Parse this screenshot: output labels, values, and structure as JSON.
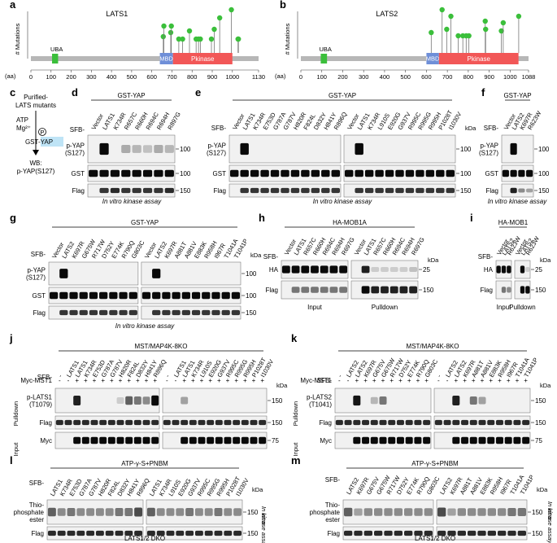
{
  "panels": {
    "a": {
      "letter": "a",
      "title": "LATS1",
      "ylabel": "# Mutations",
      "xlabel": "(aa)",
      "ticks": [
        "0",
        "100",
        "200",
        "300",
        "400",
        "500",
        "600",
        "700",
        "800",
        "900",
        "1000",
        "1130"
      ],
      "domains": [
        "UBA",
        "MBD",
        "Pkinase"
      ]
    },
    "b": {
      "letter": "b",
      "title": "LATS2",
      "ylabel": "# Mutations",
      "xlabel": "(aa)",
      "ticks": [
        "0",
        "100",
        "200",
        "300",
        "400",
        "500",
        "600",
        "700",
        "800",
        "900",
        "1000",
        "1088"
      ],
      "domains": [
        "UBA",
        "MBD",
        "Pkinase"
      ]
    },
    "c": {
      "letter": "c",
      "line1": "Purified-",
      "line2": "LATS mutants",
      "atp": "ATP",
      "mg": "Mg²⁺",
      "p": "P",
      "substrate": "GST-YAP",
      "wb1": "WB:",
      "wb2": "p-YAP(S127)"
    },
    "d": {
      "letter": "d",
      "header": "GST-YAP",
      "sfb": "SFB-",
      "lanes": [
        "Vector",
        "LATS1",
        "K734R",
        "R657C",
        "R660H",
        "R694C",
        "R694H",
        "R897G"
      ],
      "rows": [
        "p-YAP\n(S127)",
        "GST",
        "Flag"
      ],
      "markers": [
        "100",
        "100",
        "150"
      ],
      "footer": "In vitro kinase assay"
    },
    "e": {
      "letter": "e",
      "header": "GST-YAP",
      "sfb": "SFB-",
      "kda": "kDa",
      "lanes": [
        "Vector",
        "LATS1",
        "K734R",
        "E753D",
        "G787A",
        "G787V",
        "H820R",
        "F824L",
        "D832Y",
        "H841Y",
        "R896Q",
        "Vector",
        "LATS1",
        "K734R",
        "L910S",
        "E920G",
        "G937V",
        "R995C",
        "R995G",
        "R995H",
        "P1028T",
        "I1030V"
      ],
      "rows": [
        "p-YAP\n(S127)",
        "GST",
        "Flag"
      ],
      "markers": [
        "100",
        "100",
        "150"
      ],
      "footer": "In vitro kinase assay"
    },
    "f": {
      "letter": "f",
      "header": "GST-YAP",
      "sfb": "SFB-",
      "lanes": [
        "Vector",
        "LATS2",
        "K697R",
        "R623W"
      ],
      "rows": [
        "p-YAP\n(S127)",
        "GST",
        "Flag"
      ],
      "markers": [
        "100",
        "100",
        "150"
      ],
      "footer": "In vitro kinase assay"
    },
    "g": {
      "letter": "g",
      "header": "GST-YAP",
      "sfb": "SFB-",
      "kda": "kDa",
      "lanes": [
        "Vector",
        "LATS2",
        "K697R",
        "G675W",
        "R717W",
        "D752Y",
        "E774K",
        "R790Q",
        "G803C",
        "Vector",
        "LATS2",
        "K697R",
        "A881T",
        "A881V",
        "E883K",
        "R958H",
        "I967R",
        "T1041A",
        "T1041P"
      ],
      "rows": [
        "p-YAP\n(S127)",
        "GST",
        "Flag"
      ],
      "markers": [
        "100",
        "100",
        "150"
      ],
      "footer": "In vitro kinase assay"
    },
    "h": {
      "letter": "h",
      "header": "HA-MOB1A",
      "sfb": "SFB-",
      "kda": "kDa",
      "lanes": [
        "Vector",
        "LATS1",
        "R657C",
        "R660H",
        "R694C",
        "R694H",
        "R697G",
        "Vector",
        "LATS1",
        "R657C",
        "R660H",
        "R694C",
        "R694H",
        "R697G"
      ],
      "rows": [
        "HA",
        "Flag"
      ],
      "markers": [
        "25",
        "150"
      ],
      "groups": [
        "Input",
        "Pulldown"
      ]
    },
    "i": {
      "letter": "i",
      "header": "HA-MOB1",
      "sfb": "SFB-",
      "kda": "kDa",
      "lanes": [
        "Vector",
        "LATS2",
        "R623W",
        "Vector",
        "LATS2",
        "R623W"
      ],
      "rows": [
        "HA",
        "Flag"
      ],
      "markers": [
        "25",
        "150"
      ],
      "groups": [
        "Input",
        "Pulldown"
      ]
    },
    "j": {
      "letter": "j",
      "header": "MST/MAP4K-8KO",
      "sfb": "SFB-",
      "myc": "Myc-MST1",
      "kda": "kDa",
      "lanes": [
        "-",
        "LATS1",
        "LATS1",
        "K734R",
        "E753D",
        "G787A",
        "G787V",
        "H820R",
        "F824L",
        "D832Y",
        "H841Y",
        "R896Q",
        "-",
        "LATS1",
        "LATS1",
        "K734R",
        "L910S",
        "E920G",
        "G937V",
        "R995C",
        "R995G",
        "R995H",
        "P1028T",
        "I1030V"
      ],
      "mycsign": [
        "-",
        "-",
        "+",
        "+",
        "+",
        "+",
        "+",
        "+",
        "+",
        "+",
        "+",
        "+",
        "-",
        "-",
        "+",
        "+",
        "+",
        "+",
        "+",
        "+",
        "+",
        "+",
        "+",
        "+"
      ],
      "rows": [
        "p-LATS1\n(T1079)",
        "Flag",
        "Myc"
      ],
      "markers": [
        "150",
        "150",
        "75"
      ],
      "side": [
        "Pulldown",
        "Input"
      ]
    },
    "k": {
      "letter": "k",
      "header": "MST/MAP4K-8KO",
      "sfb": "SFB-",
      "myc": "Myc-MST1",
      "kda": "kDa",
      "lanes": [
        "-",
        "LATS2",
        "LATS2",
        "K697R",
        "G675V",
        "G675W",
        "R717W",
        "D752Y",
        "E774K",
        "R790Q",
        "G803C",
        "-",
        "LATS2",
        "LATS2",
        "K697R",
        "A881T",
        "A881V",
        "E883K",
        "R958H",
        "I967R",
        "T1041A",
        "T1041P"
      ],
      "mycsign": [
        "-",
        "-",
        "+",
        "+",
        "+",
        "+",
        "+",
        "+",
        "+",
        "+",
        "+",
        "-",
        "-",
        "+",
        "+",
        "+",
        "+",
        "+",
        "+",
        "+",
        "+",
        "+"
      ],
      "rows": [
        "p-LATS2\n(T1041)",
        "Flag",
        "Myc"
      ],
      "markers": [
        "150",
        "150",
        "75"
      ],
      "side": [
        "Pulldown",
        "Input"
      ]
    },
    "l": {
      "letter": "l",
      "header": "ATP-γ-S+PNBM",
      "sfb": "SFB-",
      "kda": "kDa",
      "lanes": [
        "LATS1",
        "K734R",
        "E753D",
        "G787A",
        "G787V",
        "H820R",
        "F824L",
        "D832Y",
        "H841Y",
        "R896Q",
        "LATS1",
        "K734R",
        "L910S",
        "E920G",
        "G937V",
        "R995C",
        "R995G",
        "R995H",
        "P1028T",
        "I1030V"
      ],
      "rows": [
        "Thio-\nphosphate\nester",
        "Flag"
      ],
      "markers": [
        "150",
        "150"
      ],
      "side": "In vitro\nkinase assay",
      "footer": "LATS1/2 DKO"
    },
    "m": {
      "letter": "m",
      "header": "ATP-γ-S+PNBM",
      "sfb": "SFB-",
      "kda": "kDa",
      "lanes": [
        "LATS2",
        "K697R",
        "G675V",
        "G675W",
        "R717W",
        "D752Y",
        "E774K",
        "R790Q",
        "G803C",
        "LATS2",
        "K697R",
        "A881T",
        "A881V",
        "E883K",
        "R958H",
        "I967R",
        "T1041A",
        "T1041P"
      ],
      "rows": [
        "Thio-\nphosphate\nester",
        "Flag"
      ],
      "markers": [
        "150",
        "150"
      ],
      "side": "In vitro\nkinase assay",
      "footer": "LATS1/2 DKO"
    }
  }
}
